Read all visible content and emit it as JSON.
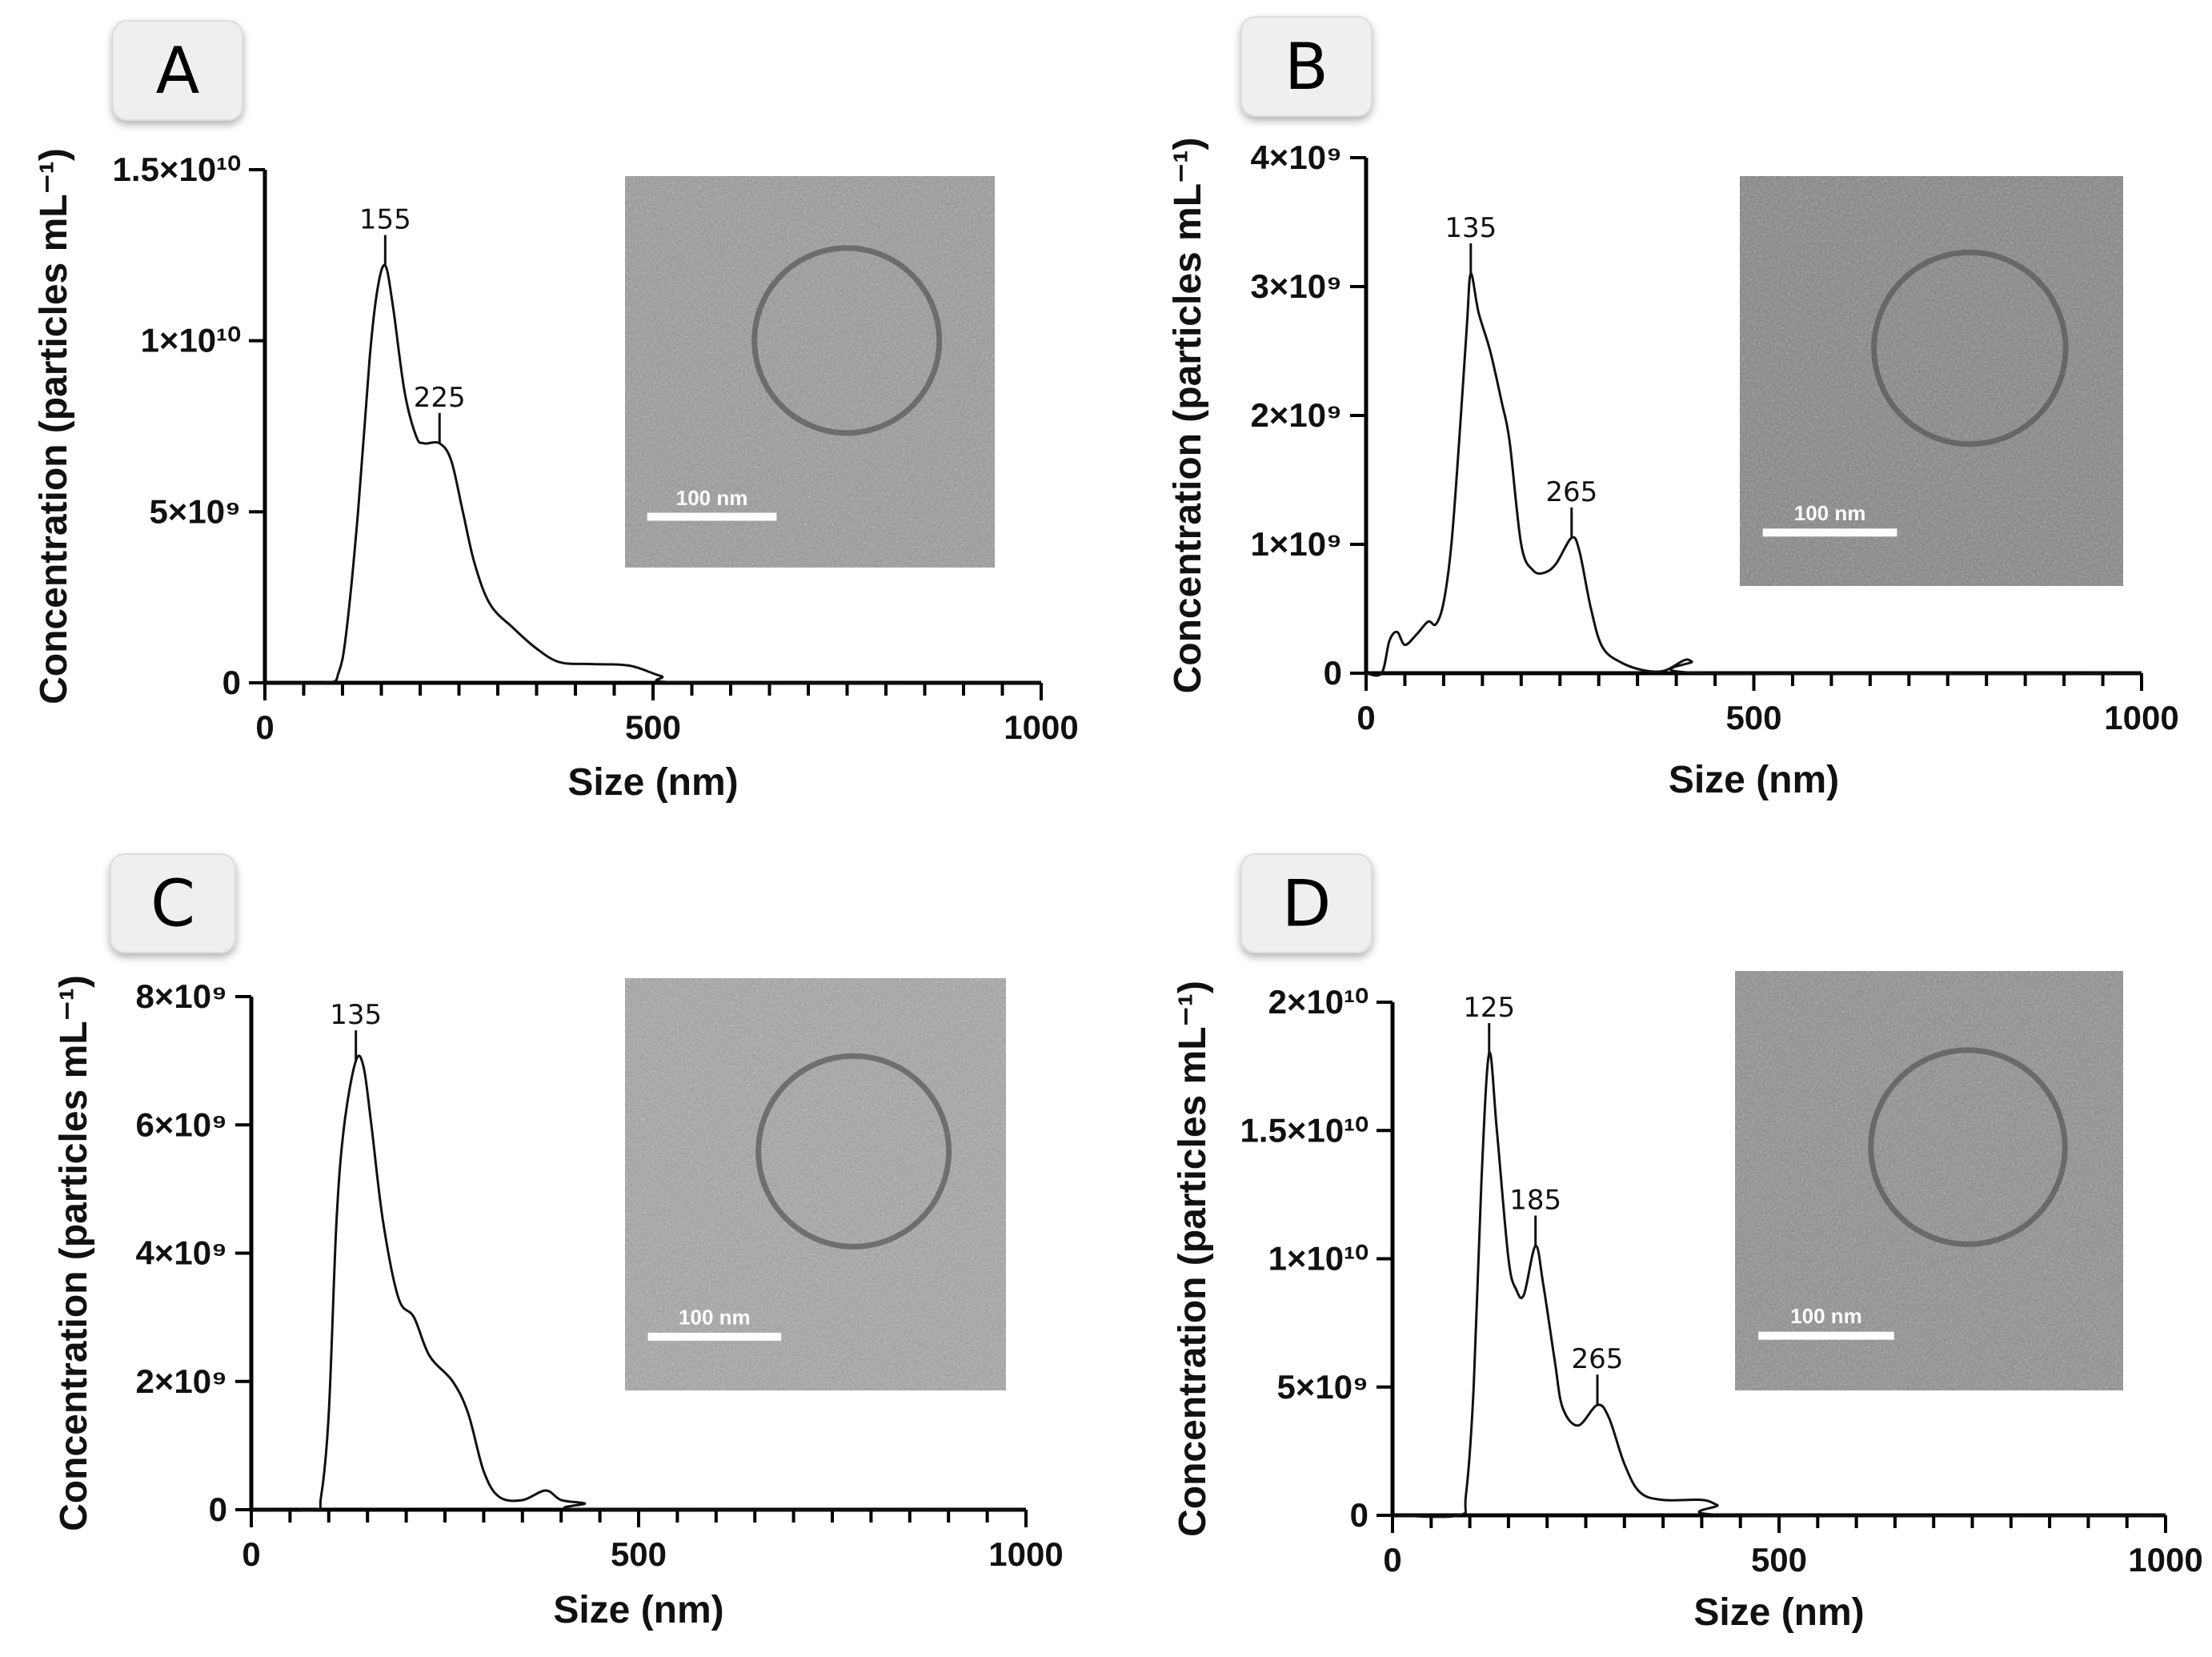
{
  "chart_data": [
    {
      "panel": "A",
      "type": "line",
      "xlabel": "Size (nm)",
      "ylabel": "Concentration (particles mL⁻¹)",
      "xlim": [
        0,
        1000
      ],
      "ylim": [
        0,
        15000000000.0
      ],
      "xticks": [
        {
          "v": 0,
          "label": "0"
        },
        {
          "v": 500,
          "label": "500"
        },
        {
          "v": 1000,
          "label": "1000"
        }
      ],
      "yticks": [
        {
          "v": 0,
          "label": "0"
        },
        {
          "v": 5000000000.0,
          "label": "5×10⁹"
        },
        {
          "v": 10000000000.0,
          "label": "1×10¹⁰"
        },
        {
          "v": 15000000000.0,
          "label": "1.5×10¹⁰"
        }
      ],
      "x": [
        0,
        80,
        95,
        105,
        120,
        135,
        145,
        155,
        165,
        180,
        195,
        205,
        225,
        240,
        255,
        270,
        290,
        320,
        350,
        380,
        420,
        470,
        510,
        550,
        1000
      ],
      "y": [
        0,
        0,
        300000000.0,
        1500000000.0,
        5000000000.0,
        9500000000.0,
        11500000000.0,
        12200000000.0,
        11000000000.0,
        8500000000.0,
        7200000000.0,
        7000000000.0,
        7000000000.0,
        6500000000.0,
        5000000000.0,
        3500000000.0,
        2300000000.0,
        1600000000.0,
        1000000000.0,
        600000000.0,
        550000000.0,
        500000000.0,
        200000000.0,
        0,
        0
      ],
      "peaks": [
        {
          "x": 155,
          "y": 12200000000.0,
          "label": "155"
        },
        {
          "x": 225,
          "y": 7000000000.0,
          "label": "225"
        }
      ],
      "inset": {
        "scale_label": "100 nm",
        "tone": "#9a9a9a"
      }
    },
    {
      "panel": "B",
      "type": "line",
      "xlabel": "Size (nm)",
      "ylabel": "Concentration (particles mL⁻¹)",
      "xlim": [
        0,
        1000
      ],
      "ylim": [
        0,
        4000000000.0
      ],
      "xticks": [
        {
          "v": 0,
          "label": "0"
        },
        {
          "v": 500,
          "label": "500"
        },
        {
          "v": 1000,
          "label": "1000"
        }
      ],
      "yticks": [
        {
          "v": 0,
          "label": "0"
        },
        {
          "v": 1000000000.0,
          "label": "1×10⁹"
        },
        {
          "v": 2000000000.0,
          "label": "2×10⁹"
        },
        {
          "v": 3000000000.0,
          "label": "3×10⁹"
        },
        {
          "v": 4000000000.0,
          "label": "4×10⁹"
        }
      ],
      "x": [
        0,
        20,
        30,
        40,
        50,
        65,
        80,
        90,
        100,
        110,
        120,
        130,
        135,
        145,
        160,
        175,
        185,
        200,
        215,
        230,
        245,
        265,
        275,
        290,
        305,
        330,
        360,
        385,
        410,
        420,
        440,
        1000
      ],
      "y": [
        0,
        0,
        250000000.0,
        320000000.0,
        220000000.0,
        300000000.0,
        400000000.0,
        380000000.0,
        550000000.0,
        1000000000.0,
        1800000000.0,
        2700000000.0,
        3100000000.0,
        2800000000.0,
        2500000000.0,
        2100000000.0,
        1800000000.0,
        1000000000.0,
        800000000.0,
        780000000.0,
        850000000.0,
        1050000000.0,
        950000000.0,
        500000000.0,
        200000000.0,
        80000000.0,
        20000000.0,
        20000000.0,
        100000000.0,
        90000000.0,
        0,
        0
      ],
      "peaks": [
        {
          "x": 135,
          "y": 3100000000.0,
          "label": "135"
        },
        {
          "x": 265,
          "y": 1050000000.0,
          "label": "265"
        }
      ],
      "inset": {
        "scale_label": "100 nm",
        "tone": "#858585"
      }
    },
    {
      "panel": "C",
      "type": "line",
      "xlabel": "Size (nm)",
      "ylabel": "Concentration (particles mL⁻¹)",
      "xlim": [
        0,
        1000
      ],
      "ylim": [
        0,
        8000000000.0
      ],
      "xticks": [
        {
          "v": 0,
          "label": "0"
        },
        {
          "v": 500,
          "label": "500"
        },
        {
          "v": 1000,
          "label": "1000"
        }
      ],
      "yticks": [
        {
          "v": 0,
          "label": "0"
        },
        {
          "v": 2000000000.0,
          "label": "2×10⁹"
        },
        {
          "v": 4000000000.0,
          "label": "4×10⁹"
        },
        {
          "v": 6000000000.0,
          "label": "6×10⁹"
        },
        {
          "v": 8000000000.0,
          "label": "8×10⁹"
        }
      ],
      "x": [
        0,
        80,
        90,
        100,
        110,
        120,
        135,
        145,
        155,
        170,
        190,
        210,
        230,
        260,
        280,
        300,
        320,
        350,
        380,
        400,
        430,
        450,
        1000
      ],
      "y": [
        0,
        0,
        200000000.0,
        1500000000.0,
        4500000000.0,
        6000000000.0,
        7000000000.0,
        6900000000.0,
        6000000000.0,
        4500000000.0,
        3300000000.0,
        3000000000.0,
        2400000000.0,
        2000000000.0,
        1500000000.0,
        600000000.0,
        200000000.0,
        150000000.0,
        300000000.0,
        150000000.0,
        100000000.0,
        0,
        0
      ],
      "peaks": [
        {
          "x": 135,
          "y": 7000000000.0,
          "label": "135"
        }
      ],
      "inset": {
        "scale_label": "100 nm",
        "tone": "#a5a5a5"
      }
    },
    {
      "panel": "D",
      "type": "line",
      "xlabel": "Size (nm)",
      "ylabel": "Concentration (particles mL⁻¹)",
      "xlim": [
        0,
        1000
      ],
      "ylim": [
        0,
        20000000000.0
      ],
      "xticks": [
        {
          "v": 0,
          "label": "0"
        },
        {
          "v": 500,
          "label": "500"
        },
        {
          "v": 1000,
          "label": "1000"
        }
      ],
      "yticks": [
        {
          "v": 0,
          "label": "0"
        },
        {
          "v": 5000000000.0,
          "label": "5×10⁹"
        },
        {
          "v": 10000000000.0,
          "label": "1×10¹⁰"
        },
        {
          "v": 15000000000.0,
          "label": "1.5×10¹⁰"
        },
        {
          "v": 20000000000.0,
          "label": "2×10¹⁰"
        }
      ],
      "x": [
        0,
        85,
        95,
        105,
        115,
        125,
        135,
        150,
        160,
        170,
        185,
        195,
        210,
        220,
        240,
        265,
        280,
        300,
        320,
        350,
        400,
        420,
        445,
        1000
      ],
      "y": [
        0,
        0,
        800000000.0,
        5000000000.0,
        13000000000.0,
        18000000000.0,
        15000000000.0,
        10000000000.0,
        8800000000.0,
        8600000000.0,
        10500000000.0,
        9000000000.0,
        6000000000.0,
        4200000000.0,
        3500000000.0,
        4300000000.0,
        3800000000.0,
        2000000000.0,
        900000000.0,
        600000000.0,
        600000000.0,
        400000000.0,
        0,
        0
      ],
      "peaks": [
        {
          "x": 125,
          "y": 18000000000.0,
          "label": "125"
        },
        {
          "x": 185,
          "y": 10500000000.0,
          "label": "185"
        },
        {
          "x": 265,
          "y": 4300000000.0,
          "label": "265"
        }
      ],
      "inset": {
        "scale_label": "100 nm",
        "tone": "#8f8f8f"
      }
    }
  ]
}
